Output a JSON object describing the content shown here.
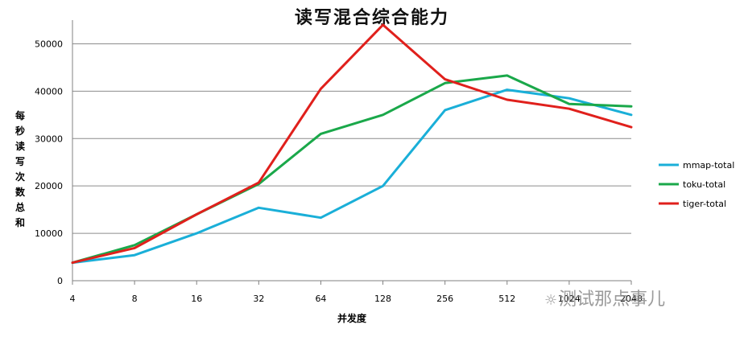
{
  "chart_data": {
    "type": "line",
    "title": "读写混合综合能力",
    "xlabel": "并发度",
    "ylabel": "每秒读写次数总和",
    "categories": [
      "4",
      "8",
      "16",
      "32",
      "64",
      "128",
      "256",
      "512",
      "1024",
      "2048"
    ],
    "ylim": [
      0,
      55000
    ],
    "yticks": [
      0,
      10000,
      20000,
      30000,
      40000,
      50000
    ],
    "grid": true,
    "legend_position": "right",
    "series": [
      {
        "name": "mmap-total",
        "color": "#1aafd8",
        "values": [
          3800,
          5400,
          10000,
          15400,
          13300,
          20000,
          36000,
          40300,
          38500,
          35000
        ]
      },
      {
        "name": "toku-total",
        "color": "#1aa84a",
        "values": [
          3800,
          7500,
          14000,
          20400,
          31000,
          35000,
          41700,
          43300,
          37300,
          36800
        ]
      },
      {
        "name": "tiger-total",
        "color": "#e0201c",
        "values": [
          3800,
          6900,
          14000,
          20700,
          40500,
          54000,
          42500,
          38200,
          36300,
          32400
        ]
      }
    ]
  },
  "watermark": {
    "icon": "wechat-icon",
    "text": "测试那点事儿"
  }
}
